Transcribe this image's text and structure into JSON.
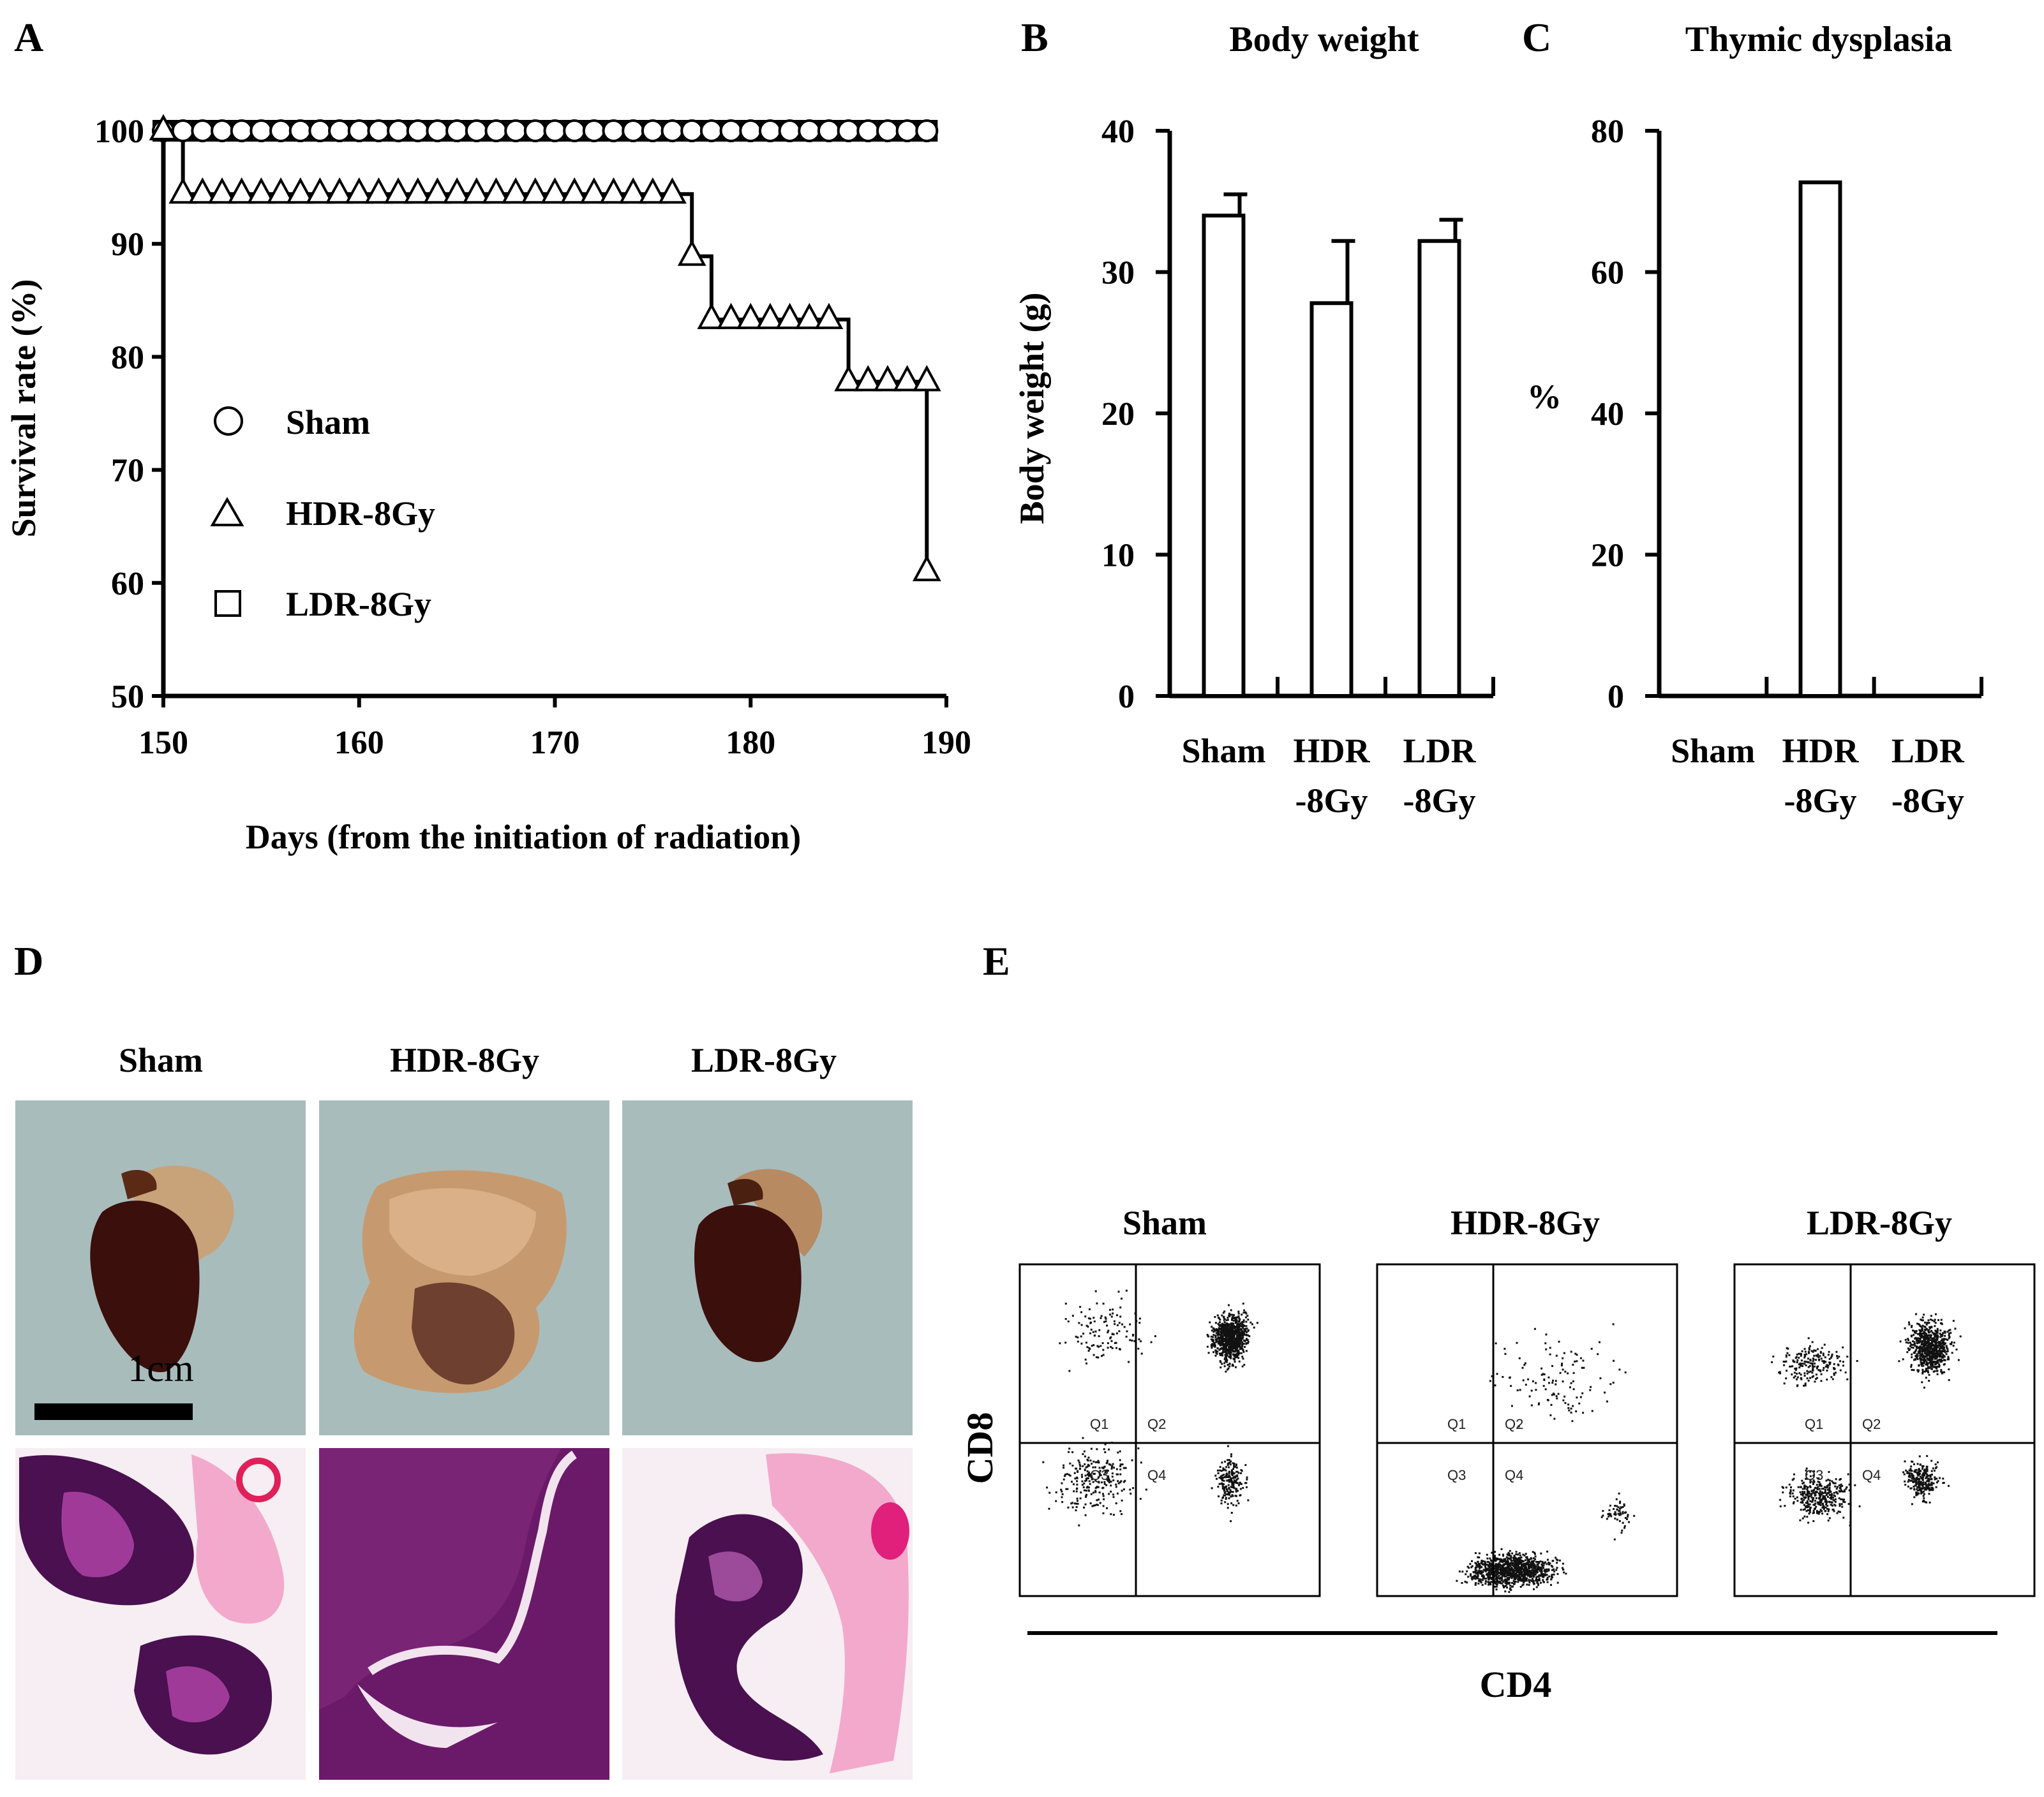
{
  "panel_letters": {
    "a": "A",
    "b": "B",
    "c": "C",
    "d": "D",
    "e": "E"
  },
  "chart_data": [
    {
      "id": "A",
      "type": "line",
      "title": "",
      "xlabel": "Days (from the initiation of radiation)",
      "ylabel": "Survival rate (%)",
      "xlim": [
        150,
        190
      ],
      "ylim": [
        50,
        100
      ],
      "xticks": [
        150,
        160,
        170,
        180,
        190
      ],
      "yticks": [
        50,
        60,
        70,
        80,
        90,
        100
      ],
      "legend_position": "left",
      "series": [
        {
          "name": "Sham",
          "marker": "circle",
          "x": [
            150,
            151,
            152,
            153,
            154,
            155,
            156,
            157,
            158,
            159,
            160,
            161,
            162,
            163,
            164,
            165,
            166,
            167,
            168,
            169,
            170,
            171,
            172,
            173,
            174,
            175,
            176,
            177,
            178,
            179,
            180,
            181,
            182,
            183,
            184,
            185,
            186,
            187,
            188,
            189
          ],
          "y": [
            100,
            100,
            100,
            100,
            100,
            100,
            100,
            100,
            100,
            100,
            100,
            100,
            100,
            100,
            100,
            100,
            100,
            100,
            100,
            100,
            100,
            100,
            100,
            100,
            100,
            100,
            100,
            100,
            100,
            100,
            100,
            100,
            100,
            100,
            100,
            100,
            100,
            100,
            100,
            100
          ]
        },
        {
          "name": "HDR-8Gy",
          "marker": "triangle",
          "x": [
            150,
            151,
            152,
            153,
            154,
            155,
            156,
            157,
            158,
            159,
            160,
            161,
            162,
            163,
            164,
            165,
            166,
            167,
            168,
            169,
            170,
            171,
            172,
            173,
            174,
            175,
            176,
            177,
            178,
            179,
            180,
            181,
            182,
            183,
            184,
            185,
            186,
            187,
            188,
            189,
            189
          ],
          "y": [
            100,
            94.4,
            94.4,
            94.4,
            94.4,
            94.4,
            94.4,
            94.4,
            94.4,
            94.4,
            94.4,
            94.4,
            94.4,
            94.4,
            94.4,
            94.4,
            94.4,
            94.4,
            94.4,
            94.4,
            94.4,
            94.4,
            94.4,
            94.4,
            94.4,
            94.4,
            94.4,
            88.9,
            83.3,
            83.3,
            83.3,
            83.3,
            83.3,
            83.3,
            83.3,
            77.8,
            77.8,
            77.8,
            77.8,
            77.8,
            61
          ]
        },
        {
          "name": "LDR-8Gy",
          "marker": "square",
          "x": [
            150,
            151,
            152,
            153,
            154,
            155,
            156,
            157,
            158,
            159,
            160,
            161,
            162,
            163,
            164,
            165,
            166,
            167,
            168,
            169,
            170,
            171,
            172,
            173,
            174,
            175,
            176,
            177,
            178,
            179,
            180,
            181,
            182,
            183,
            184,
            185,
            186,
            187,
            188,
            189
          ],
          "y": [
            100,
            100,
            100,
            100,
            100,
            100,
            100,
            100,
            100,
            100,
            100,
            100,
            100,
            100,
            100,
            100,
            100,
            100,
            100,
            100,
            100,
            100,
            100,
            100,
            100,
            100,
            100,
            100,
            100,
            100,
            100,
            100,
            100,
            100,
            100,
            100,
            100,
            100,
            100,
            100
          ]
        }
      ]
    },
    {
      "id": "B",
      "type": "bar",
      "title": "Body weight",
      "xlabel": "",
      "ylabel": "Body weight (g)",
      "ylim": [
        0,
        40
      ],
      "yticks": [
        0,
        10,
        20,
        30,
        40
      ],
      "categories": [
        [
          "Sham",
          ""
        ],
        [
          "HDR",
          "-8Gy"
        ],
        [
          "LDR",
          "-8Gy"
        ]
      ],
      "values": [
        34,
        27.8,
        32.2
      ],
      "errors": [
        1.5,
        4.4,
        1.5
      ]
    },
    {
      "id": "C",
      "type": "bar",
      "title": "Thymic dysplasia",
      "xlabel": "",
      "ylabel": "%",
      "ylim": [
        0,
        80
      ],
      "yticks": [
        0,
        20,
        40,
        60,
        80
      ],
      "categories": [
        [
          "Sham",
          ""
        ],
        [
          "HDR",
          "-8Gy"
        ],
        [
          "LDR",
          "-8Gy"
        ]
      ],
      "values": [
        0,
        72.7,
        0
      ]
    }
  ],
  "panel_d": {
    "column_labels": [
      "Sham",
      "HDR-8Gy",
      "LDR-8Gy"
    ],
    "scale_bar_label": "1cm"
  },
  "panel_e": {
    "column_labels": [
      "Sham",
      "HDR-8Gy",
      "LDR-8Gy"
    ],
    "y_axis_label": "CD8",
    "x_axis_label": "CD4",
    "quadrant_labels": [
      "Q1",
      "Q2",
      "Q3",
      "Q4"
    ]
  },
  "colors": {
    "photo_bg": "#a9bcbc",
    "thymus_dark": "#3a0f0c",
    "fat_tissue": "#c69a6e",
    "he_background": "#f6eef2",
    "he_pink": "#f2a9cc",
    "he_purple": "#6a1a68",
    "he_dark_purple": "#4a1050"
  }
}
